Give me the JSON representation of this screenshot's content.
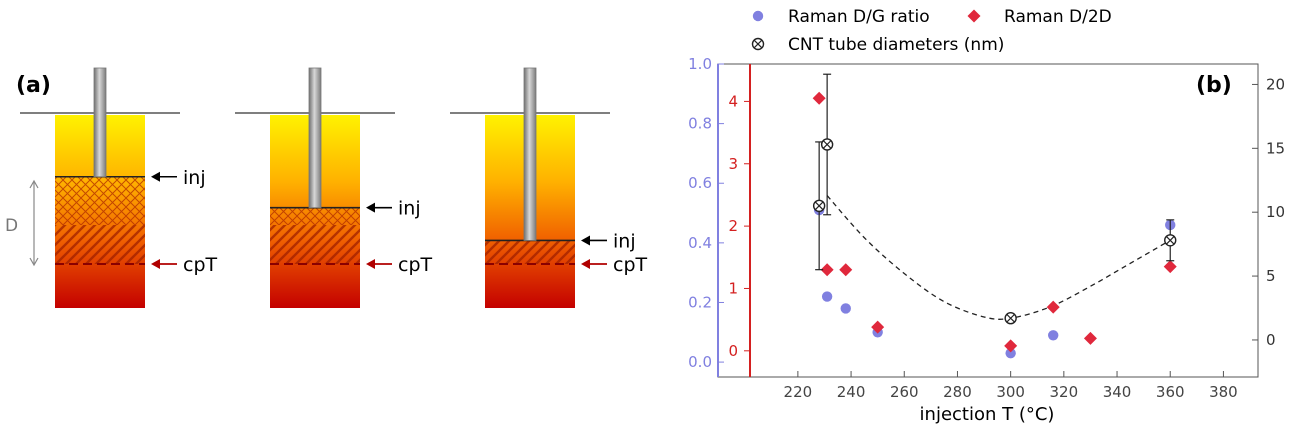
{
  "panel_a": {
    "label": "(a)",
    "depth_label": "D",
    "inj_label": "inj",
    "cpt_label": "cpT",
    "columns": [
      {
        "inj_depth_fraction": 0.32
      },
      {
        "inj_depth_fraction": 0.48
      },
      {
        "inj_depth_fraction": 0.65
      }
    ]
  },
  "chart_data": {
    "type": "scatter",
    "panel_label": "(b)",
    "xlabel": "injection T (°C)",
    "x_ticks": [
      220,
      240,
      260,
      280,
      300,
      320,
      340,
      360,
      380
    ],
    "xlim": [
      202,
      393
    ],
    "axes": {
      "dg": {
        "ylim": [
          -0.05,
          1.0
        ],
        "ticks": [
          "0.0",
          "0.2",
          "0.4",
          "0.6",
          "0.8",
          "1.0"
        ],
        "color": "#8080e0"
      },
      "d2d": {
        "ylim": [
          -0.42,
          4.6
        ],
        "ticks": [
          "0",
          "1",
          "2",
          "3",
          "4"
        ],
        "color": "#d42020"
      },
      "diam": {
        "ylim": [
          -2.9,
          21.6
        ],
        "ticks": [
          "0",
          "5",
          "10",
          "15",
          "20"
        ],
        "color": "#333333"
      }
    },
    "series": [
      {
        "name": "Raman D/G ratio",
        "axis": "dg",
        "color": "#8080e0",
        "marker": "circle",
        "points": [
          [
            228,
            0.51
          ],
          [
            231,
            0.22
          ],
          [
            238,
            0.18
          ],
          [
            250,
            0.1
          ],
          [
            300,
            0.03
          ],
          [
            316,
            0.09
          ],
          [
            360,
            0.46
          ]
        ]
      },
      {
        "name": "Raman D/2D",
        "axis": "d2d",
        "color": "#e0283c",
        "marker": "diamond",
        "points": [
          [
            228,
            4.05
          ],
          [
            231,
            1.3
          ],
          [
            238,
            1.3
          ],
          [
            250,
            0.38
          ],
          [
            300,
            0.08
          ],
          [
            316,
            0.7
          ],
          [
            330,
            0.2
          ],
          [
            360,
            1.35
          ]
        ]
      },
      {
        "name": "CNT tube diameters (nm)",
        "axis": "diam",
        "color": "#222222",
        "marker": "crossed-circle",
        "points": [
          {
            "x": 228,
            "y": 10.5,
            "err": 5.0
          },
          {
            "x": 231,
            "y": 15.3,
            "err": 5.5
          },
          {
            "x": 300,
            "y": 1.7,
            "err": 0
          },
          {
            "x": 360,
            "y": 7.8,
            "err": 1.6
          }
        ]
      }
    ],
    "trend_curve": {
      "axis": "diam",
      "style": "dashed",
      "points": [
        [
          231,
          11.3
        ],
        [
          245,
          8.0
        ],
        [
          260,
          5.2
        ],
        [
          275,
          3.0
        ],
        [
          290,
          1.8
        ],
        [
          300,
          1.7
        ],
        [
          315,
          2.6
        ],
        [
          330,
          4.2
        ],
        [
          345,
          6.0
        ],
        [
          360,
          7.8
        ]
      ]
    },
    "legend": {
      "placement": "top",
      "entries": [
        "Raman D/G ratio",
        "Raman D/2D",
        "CNT tube diameters (nm)"
      ]
    }
  }
}
